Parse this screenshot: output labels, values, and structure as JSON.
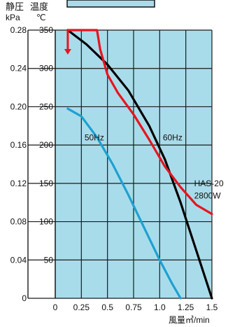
{
  "header": {
    "ylabel_left_top": "静圧",
    "ylabel_left_unit": "kPa",
    "ylabel_right_top": "温度",
    "ylabel_right_unit": "℃"
  },
  "chart_data": {
    "type": "line",
    "xlabel": "風量㎥/min",
    "x_ticks": [
      "0",
      "0.25",
      "0.5",
      "0.75",
      "1.0",
      "1.25",
      "1.5"
    ],
    "xlim": [
      0,
      1.5
    ],
    "y_left_ticks": [
      "0",
      "0.04",
      "0.08",
      "0.12",
      "0.16",
      "0.20",
      "0.24",
      "0.28"
    ],
    "y_left_lim": [
      0,
      0.28
    ],
    "y_right_ticks": [
      "50",
      "100",
      "150",
      "200",
      "250",
      "300",
      "350"
    ],
    "y_right_lim": [
      0,
      350
    ],
    "grid": true,
    "colors": {
      "plot_bg": "#a9dcea",
      "grid": "#1a1a1a",
      "fan_60hz": "#000000",
      "fan_50hz": "#1ea0d2",
      "heater": "#e8141e"
    },
    "annotations": [
      {
        "text": "50Hz",
        "x": 0.28,
        "y_left": 0.165
      },
      {
        "text": "60Hz",
        "x": 1.03,
        "y_left": 0.165
      },
      {
        "text": "HAS-20",
        "x": 1.33,
        "y_left": 0.117
      },
      {
        "text": "2800W",
        "x": 1.33,
        "y_left": 0.104
      }
    ],
    "series": [
      {
        "axis": "left",
        "color_key": "fan_60hz",
        "x": [
          0.12,
          0.3,
          0.5,
          0.7,
          0.9,
          1.05,
          1.2,
          1.35,
          1.5
        ],
        "y": [
          0.28,
          0.265,
          0.244,
          0.217,
          0.18,
          0.145,
          0.1,
          0.05,
          0.0
        ]
      },
      {
        "axis": "left",
        "color_key": "fan_50hz",
        "x": [
          0.12,
          0.25,
          0.4,
          0.55,
          0.7,
          0.85,
          1.0,
          1.12,
          1.2
        ],
        "y": [
          0.198,
          0.19,
          0.168,
          0.14,
          0.108,
          0.074,
          0.04,
          0.015,
          0.0
        ]
      },
      {
        "axis": "right",
        "color_key": "heater",
        "x": [
          0.12,
          0.4,
          0.43,
          0.5,
          0.6,
          0.75,
          0.9,
          1.05,
          1.2,
          1.35,
          1.5
        ],
        "y": [
          350,
          350,
          325,
          292,
          268,
          240,
          207,
          172,
          145,
          122,
          110
        ]
      }
    ],
    "arrow": {
      "x": 0.12,
      "from_y": 350,
      "to_y": 318,
      "color_key": "heater"
    }
  }
}
